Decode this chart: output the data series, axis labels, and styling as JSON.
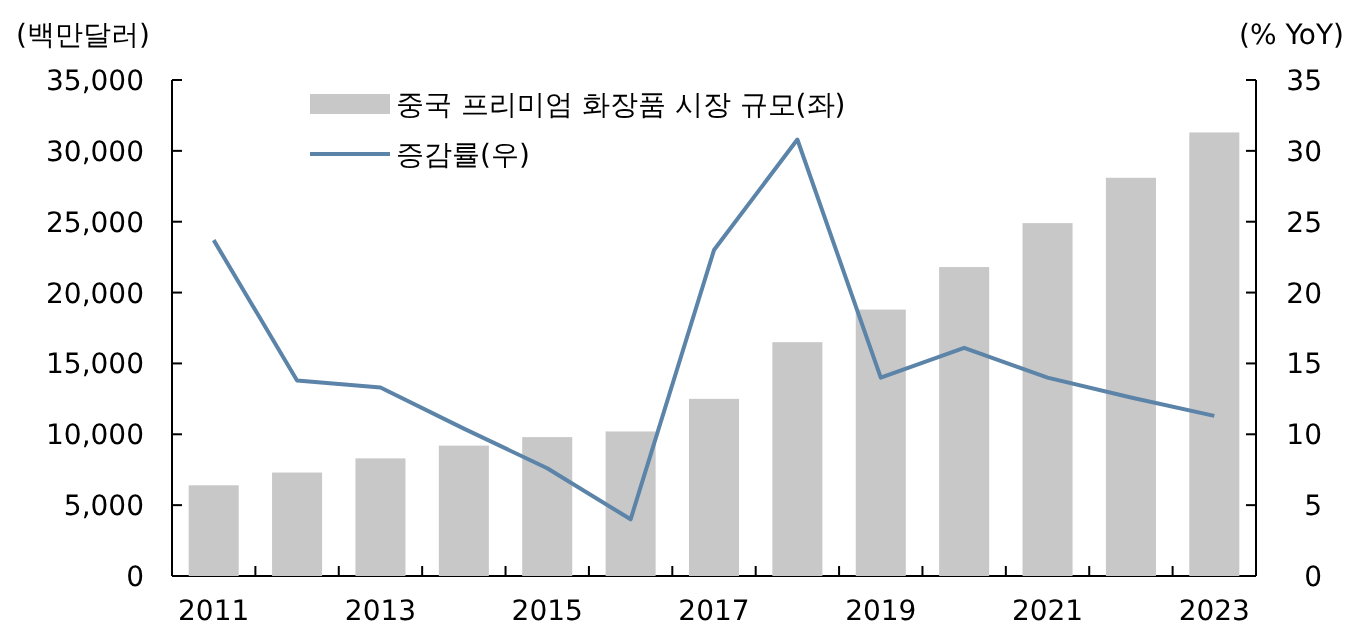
{
  "chart_data": {
    "type": "bar",
    "ylabel": "(백만달러)",
    "y2label": "(% YoY)",
    "categories": [
      "2011",
      null,
      "2013",
      null,
      "2015",
      null,
      "2017",
      null,
      "2019",
      null,
      "2021",
      null,
      "2023"
    ],
    "series": [
      {
        "name": "중국 프리미엄 화장품 시장 규모(좌)",
        "color": "#c8c8c8",
        "values": [
          6400,
          7300,
          8300,
          9200,
          9800,
          10200,
          12500,
          16500,
          18800,
          21800,
          24900,
          28100,
          31300
        ]
      },
      {
        "name": "증감률(우)",
        "type": "line",
        "axis": "y2",
        "color": "#5b84a8",
        "values": [
          23.7,
          13.8,
          13.3,
          10.4,
          7.6,
          4.0,
          23.0,
          30.8,
          14.0,
          16.1,
          14.0,
          12.6,
          11.3
        ]
      }
    ],
    "ylim": [
      0,
      35000
    ],
    "yticks": [
      {
        "value": 0,
        "label": "0"
      },
      {
        "value": 5000,
        "label": "5,000"
      },
      {
        "value": 10000,
        "label": "10,000"
      },
      {
        "value": 15000,
        "label": "15,000"
      },
      {
        "value": 20000,
        "label": "20,000"
      },
      {
        "value": 25000,
        "label": "25,000"
      },
      {
        "value": 30000,
        "label": "30,000"
      },
      {
        "value": 35000,
        "label": "35,000"
      }
    ],
    "y2lim": [
      0,
      35
    ],
    "y2ticks": [
      0,
      5,
      10,
      15,
      20,
      25,
      30,
      35
    ],
    "grid": false,
    "legend": "top",
    "marker": "none",
    "line_style": "solid"
  }
}
